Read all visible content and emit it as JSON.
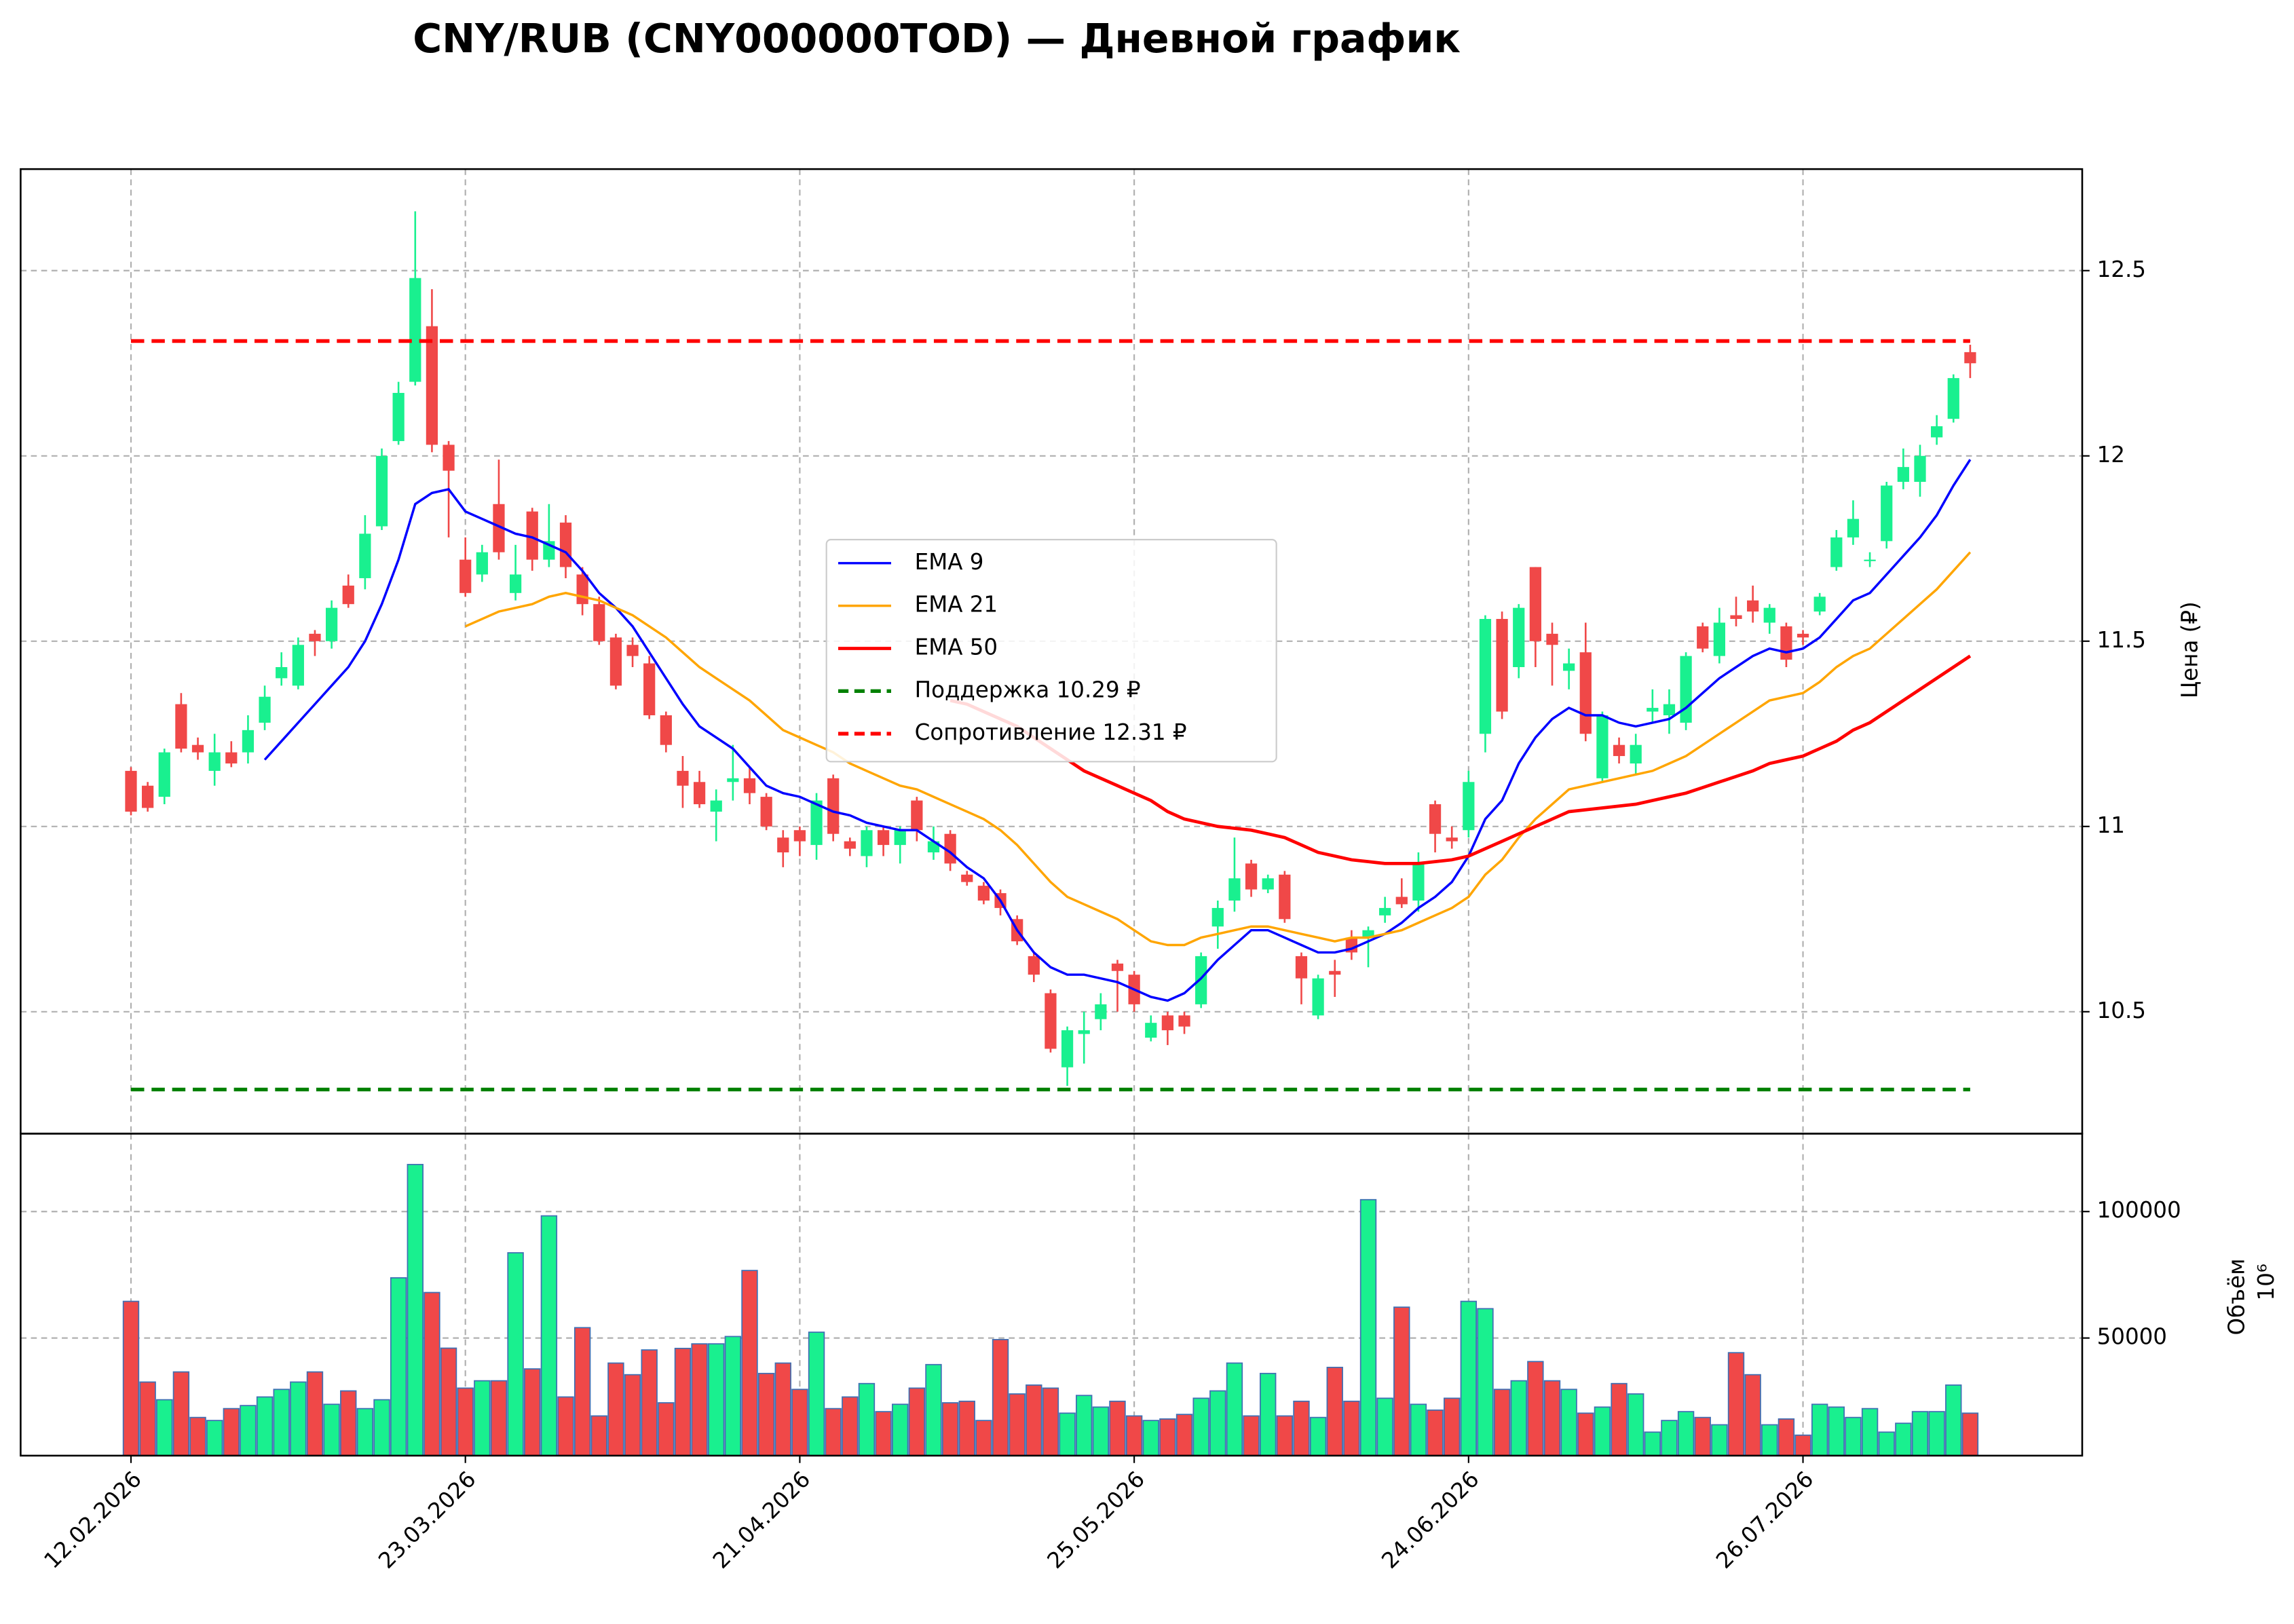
{
  "chart_data": {
    "type": "candlestick",
    "title": "CNY/RUB (CNY000000TOD) — Дневной график",
    "ylabel": "Цена (₽)",
    "ylim": [
      10.171,
      12.774
    ],
    "yticks": [
      10.5,
      11.0,
      11.5,
      12.0,
      12.5
    ],
    "xlim": [
      -6.6,
      116.7
    ],
    "xticks": [
      {
        "value": 0,
        "label": "12.02.2026"
      },
      {
        "value": 20,
        "label": "23.03.2026"
      },
      {
        "value": 40,
        "label": "21.04.2026"
      },
      {
        "value": 60,
        "label": "25.05.2026"
      },
      {
        "value": 80,
        "label": "24.06.2026"
      },
      {
        "value": 100,
        "label": "26.07.2026"
      }
    ],
    "grid": true,
    "up_color": "#19f08f",
    "down_color": "#f04848",
    "legend": "center",
    "open": [
      11.15,
      11.11,
      11.08,
      11.33,
      11.22,
      11.15,
      11.2,
      11.2,
      11.28,
      11.4,
      11.38,
      11.52,
      11.5,
      11.65,
      11.67,
      11.81,
      12.04,
      12.2,
      12.35,
      12.03,
      11.72,
      11.68,
      11.87,
      11.63,
      11.85,
      11.72,
      11.82,
      11.68,
      11.6,
      11.51,
      11.49,
      11.44,
      11.3,
      11.15,
      11.12,
      11.04,
      11.12,
      11.13,
      11.08,
      10.97,
      10.99,
      10.95,
      11.13,
      10.96,
      10.92,
      10.99,
      10.95,
      11.07,
      10.93,
      10.98,
      10.87,
      10.84,
      10.82,
      10.75,
      10.65,
      10.55,
      10.35,
      10.44,
      10.48,
      10.63,
      10.6,
      10.43,
      10.49,
      10.49,
      10.52,
      10.73,
      10.8,
      10.9,
      10.83,
      10.87,
      10.65,
      10.49,
      10.61,
      10.7,
      10.7,
      10.76,
      10.81,
      10.8,
      11.06,
      10.97,
      10.99,
      11.25,
      11.56,
      11.43,
      11.7,
      11.52,
      11.42,
      11.47,
      11.13,
      11.22,
      11.17,
      11.31,
      11.3,
      11.28,
      11.54,
      11.46,
      11.57,
      11.61,
      11.55,
      11.54,
      11.52,
      11.58,
      11.7,
      11.78,
      11.72,
      11.77,
      11.93,
      11.93,
      12.05,
      12.1,
      12.28
    ],
    "high": [
      11.16,
      11.12,
      11.21,
      11.36,
      11.24,
      11.25,
      11.23,
      11.3,
      11.38,
      11.47,
      11.51,
      11.53,
      11.61,
      11.68,
      11.84,
      12.02,
      12.2,
      12.66,
      12.45,
      12.04,
      11.78,
      11.76,
      11.99,
      11.76,
      11.86,
      11.87,
      11.84,
      11.7,
      11.62,
      11.52,
      11.51,
      11.46,
      11.31,
      11.19,
      11.15,
      11.1,
      11.22,
      11.16,
      11.09,
      10.99,
      11.0,
      11.09,
      11.14,
      10.97,
      11.0,
      11.0,
      11.0,
      11.08,
      11.0,
      10.99,
      10.88,
      10.85,
      10.83,
      10.76,
      10.66,
      10.56,
      10.46,
      10.5,
      10.55,
      10.64,
      10.61,
      10.49,
      10.5,
      10.5,
      10.66,
      10.8,
      10.97,
      10.91,
      10.87,
      10.88,
      10.66,
      10.6,
      10.64,
      10.72,
      10.73,
      10.81,
      10.86,
      10.93,
      11.07,
      11.0,
      11.15,
      11.57,
      11.58,
      11.6,
      11.7,
      11.55,
      11.48,
      11.55,
      11.31,
      11.24,
      11.25,
      11.37,
      11.37,
      11.47,
      11.55,
      11.59,
      11.62,
      11.65,
      11.6,
      11.55,
      11.53,
      11.63,
      11.8,
      11.88,
      11.74,
      11.93,
      12.02,
      12.03,
      12.11,
      12.22,
      12.3
    ],
    "low": [
      11.03,
      11.04,
      11.06,
      11.2,
      11.18,
      11.11,
      11.16,
      11.17,
      11.26,
      11.38,
      11.37,
      11.46,
      11.48,
      11.59,
      11.64,
      11.8,
      12.03,
      12.19,
      12.01,
      11.78,
      11.62,
      11.66,
      11.72,
      11.61,
      11.69,
      11.7,
      11.67,
      11.57,
      11.49,
      11.37,
      11.43,
      11.29,
      11.2,
      11.05,
      11.05,
      10.96,
      11.07,
      11.06,
      10.99,
      10.89,
      10.92,
      10.91,
      10.96,
      10.92,
      10.89,
      10.92,
      10.9,
      10.96,
      10.91,
      10.88,
      10.84,
      10.79,
      10.76,
      10.68,
      10.58,
      10.39,
      10.3,
      10.36,
      10.45,
      10.5,
      10.5,
      10.42,
      10.41,
      10.44,
      10.51,
      10.67,
      10.77,
      10.81,
      10.82,
      10.74,
      10.52,
      10.48,
      10.54,
      10.64,
      10.62,
      10.74,
      10.78,
      10.77,
      10.93,
      10.94,
      10.97,
      11.2,
      11.29,
      11.4,
      11.43,
      11.38,
      11.37,
      11.23,
      11.12,
      11.17,
      11.14,
      11.28,
      11.25,
      11.26,
      11.47,
      11.44,
      11.54,
      11.55,
      11.52,
      11.43,
      11.49,
      11.57,
      11.69,
      11.76,
      11.7,
      11.75,
      11.91,
      11.89,
      12.03,
      12.09,
      12.21
    ],
    "close": [
      11.04,
      11.05,
      11.2,
      11.21,
      11.2,
      11.2,
      11.17,
      11.26,
      11.35,
      11.43,
      11.49,
      11.5,
      11.59,
      11.6,
      11.79,
      12.0,
      12.17,
      12.48,
      12.03,
      11.96,
      11.63,
      11.74,
      11.74,
      11.68,
      11.72,
      11.77,
      11.7,
      11.6,
      11.5,
      11.38,
      11.46,
      11.3,
      11.22,
      11.11,
      11.06,
      11.07,
      11.13,
      11.09,
      11.0,
      10.93,
      10.96,
      11.07,
      10.98,
      10.94,
      10.99,
      10.95,
      10.99,
      10.99,
      10.96,
      10.9,
      10.85,
      10.8,
      10.78,
      10.69,
      10.6,
      10.4,
      10.45,
      10.45,
      10.52,
      10.61,
      10.52,
      10.47,
      10.45,
      10.46,
      10.65,
      10.78,
      10.86,
      10.83,
      10.86,
      10.75,
      10.59,
      10.59,
      10.6,
      10.66,
      10.72,
      10.78,
      10.79,
      10.9,
      10.98,
      10.96,
      11.12,
      11.56,
      11.31,
      11.59,
      11.5,
      11.49,
      11.44,
      11.25,
      11.3,
      11.19,
      11.22,
      11.32,
      11.33,
      11.46,
      11.48,
      11.55,
      11.56,
      11.58,
      11.59,
      11.45,
      11.51,
      11.62,
      11.78,
      11.83,
      11.72,
      11.92,
      11.97,
      12.0,
      12.08,
      12.21,
      12.25
    ],
    "lines": [
      {
        "name": "EMA 9",
        "color": "#0000ff",
        "values": [
          null,
          null,
          null,
          null,
          null,
          null,
          null,
          null,
          11.18,
          11.23,
          11.28,
          11.33,
          11.38,
          11.43,
          11.5,
          11.6,
          11.72,
          11.87,
          11.9,
          11.91,
          11.85,
          11.83,
          11.81,
          11.79,
          11.78,
          11.76,
          11.74,
          11.69,
          11.63,
          11.59,
          11.54,
          11.47,
          11.4,
          11.33,
          11.27,
          11.24,
          11.21,
          11.16,
          11.11,
          11.09,
          11.08,
          11.06,
          11.04,
          11.03,
          11.01,
          11.0,
          10.99,
          10.99,
          10.96,
          10.93,
          10.89,
          10.86,
          10.8,
          10.72,
          10.66,
          10.62,
          10.6,
          10.6,
          10.59,
          10.58,
          10.56,
          10.54,
          10.53,
          10.55,
          10.59,
          10.64,
          10.68,
          10.72,
          10.72,
          10.7,
          10.68,
          10.66,
          10.66,
          10.67,
          10.69,
          10.71,
          10.74,
          10.78,
          10.81,
          10.85,
          10.92,
          11.02,
          11.07,
          11.17,
          11.24,
          11.29,
          11.32,
          11.3,
          11.3,
          11.28,
          11.27,
          11.28,
          11.29,
          11.32,
          11.36,
          11.4,
          11.43,
          11.46,
          11.48,
          11.47,
          11.48,
          11.51,
          11.56,
          11.61,
          11.63,
          11.68,
          11.73,
          11.78,
          11.84,
          11.92,
          11.99
        ]
      },
      {
        "name": "EMA 21",
        "color": "#ffa500",
        "values": [
          null,
          null,
          null,
          null,
          null,
          null,
          null,
          null,
          null,
          null,
          null,
          null,
          null,
          null,
          null,
          null,
          null,
          null,
          null,
          null,
          11.54,
          11.56,
          11.58,
          11.59,
          11.6,
          11.62,
          11.63,
          11.62,
          11.61,
          11.59,
          11.57,
          11.54,
          11.51,
          11.47,
          11.43,
          11.4,
          11.37,
          11.34,
          11.3,
          11.26,
          11.24,
          11.22,
          11.2,
          11.17,
          11.15,
          11.13,
          11.11,
          11.1,
          11.08,
          11.06,
          11.04,
          11.02,
          10.99,
          10.95,
          10.9,
          10.85,
          10.81,
          10.79,
          10.77,
          10.75,
          10.72,
          10.69,
          10.68,
          10.68,
          10.7,
          10.71,
          10.72,
          10.73,
          10.73,
          10.72,
          10.71,
          10.7,
          10.69,
          10.7,
          10.7,
          10.71,
          10.72,
          10.74,
          10.76,
          10.78,
          10.81,
          10.87,
          10.91,
          10.97,
          11.02,
          11.06,
          11.1,
          11.11,
          11.12,
          11.13,
          11.14,
          11.15,
          11.17,
          11.19,
          11.22,
          11.25,
          11.28,
          11.31,
          11.34,
          11.35,
          11.36,
          11.39,
          11.43,
          11.46,
          11.48,
          11.52,
          11.56,
          11.6,
          11.64,
          11.69,
          11.74
        ]
      },
      {
        "name": "EMA 50",
        "color": "#ff0000",
        "values": [
          null,
          null,
          null,
          null,
          null,
          null,
          null,
          null,
          null,
          null,
          null,
          null,
          null,
          null,
          null,
          null,
          null,
          null,
          null,
          null,
          null,
          null,
          null,
          null,
          null,
          null,
          null,
          null,
          null,
          null,
          null,
          null,
          null,
          null,
          null,
          null,
          null,
          null,
          null,
          null,
          null,
          null,
          null,
          null,
          null,
          null,
          null,
          null,
          null,
          11.34,
          11.33,
          11.31,
          11.29,
          11.27,
          11.24,
          11.21,
          11.18,
          11.15,
          11.13,
          11.11,
          11.09,
          11.07,
          11.04,
          11.02,
          11.01,
          11.0,
          10.995,
          10.99,
          10.98,
          10.97,
          10.95,
          10.93,
          10.92,
          10.91,
          10.905,
          10.9,
          10.9,
          10.9,
          10.905,
          10.91,
          10.92,
          10.94,
          10.96,
          10.98,
          11.0,
          11.02,
          11.04,
          11.045,
          11.05,
          11.055,
          11.06,
          11.07,
          11.08,
          11.09,
          11.105,
          11.12,
          11.135,
          11.15,
          11.17,
          11.18,
          11.19,
          11.21,
          11.23,
          11.26,
          11.28,
          11.31,
          11.34,
          11.37,
          11.4,
          11.43,
          11.46
        ]
      }
    ],
    "levels": [
      {
        "name": "Поддержка 10.29 ₽",
        "value": 10.29,
        "color": "#008000"
      },
      {
        "name": "Сопротивление 12.31 ₽",
        "value": 12.31,
        "color": "#ff0000"
      }
    ],
    "volume": {
      "ylabel": "Объём",
      "offset_label": "10⁶",
      "ylim": [
        3500,
        130800
      ],
      "yticks": [
        50000,
        100000
      ],
      "values": [
        64500,
        32600,
        25600,
        36600,
        18600,
        17400,
        22100,
        23300,
        26700,
        29700,
        32600,
        36600,
        23800,
        29100,
        22100,
        25600,
        73800,
        118600,
        68000,
        46000,
        30200,
        33100,
        33100,
        83700,
        37800,
        98300,
        26700,
        54100,
        19200,
        40100,
        35500,
        45300,
        24400,
        45900,
        47700,
        47700,
        50600,
        76700,
        36000,
        40100,
        29700,
        52300,
        22100,
        26700,
        32000,
        20900,
        23800,
        30200,
        39500,
        24400,
        25000,
        17400,
        49400,
        27900,
        31400,
        30200,
        20300,
        27300,
        22700,
        25000,
        19200,
        17400,
        18000,
        19800,
        26200,
        29100,
        40100,
        19200,
        36000,
        19200,
        25000,
        18600,
        38400,
        25000,
        104700,
        26200,
        62200,
        23800,
        21500,
        26200,
        64500,
        61600,
        29700,
        33100,
        40700,
        33100,
        29700,
        20300,
        22700,
        32000,
        27900,
        12800,
        17400,
        20900,
        18600,
        15700,
        44200,
        35500,
        15700,
        18000,
        11600,
        23800,
        22700,
        18600,
        22100,
        12800,
        16300,
        20900,
        20900,
        31400,
        20300
      ]
    }
  }
}
